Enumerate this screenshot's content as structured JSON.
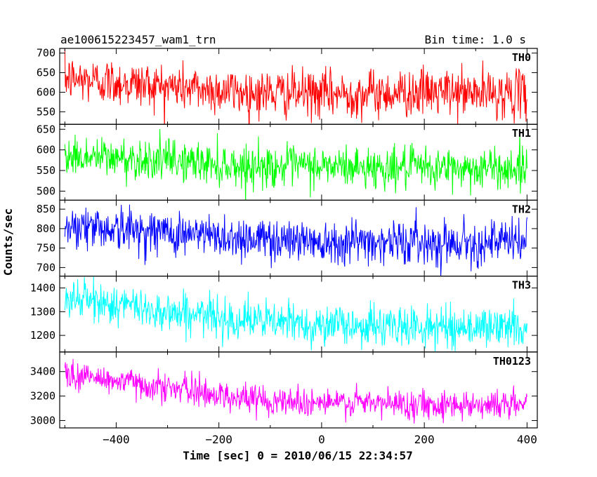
{
  "header": {
    "title": "ae100615223457_wam1_trn",
    "bin_time": "Bin time: 1.0 s"
  },
  "axes": {
    "xlabel": "Time [sec] 0 = 2010/06/15 22:34:57",
    "ylabel": "Counts/sec"
  },
  "chart_data": {
    "type": "line",
    "title": "ae100615223457_wam1_trn",
    "xlabel": "Time [sec] 0 = 2010/06/15 22:34:57",
    "ylabel": "Counts/sec",
    "xlim": [
      -510,
      420
    ],
    "x_range": [
      -500,
      400
    ],
    "x_ticks": [
      -400,
      -200,
      0,
      200,
      400
    ],
    "bin_time_s": 1.0,
    "grid": false,
    "panels": [
      {
        "name": "TH0",
        "color": "#ff0000",
        "ylim": [
          518,
          712
        ],
        "y_ticks": [
          550,
          600,
          650,
          700
        ],
        "trend": [
          [
            -500,
            635
          ],
          [
            -300,
            615
          ],
          [
            -150,
            600
          ],
          [
            0,
            595
          ],
          [
            200,
            600
          ],
          [
            400,
            595
          ]
        ],
        "noise_sd": 30
      },
      {
        "name": "TH1",
        "color": "#00ff00",
        "ylim": [
          478,
          662
        ],
        "y_ticks": [
          500,
          550,
          600,
          650
        ],
        "trend": [
          [
            -500,
            585
          ],
          [
            -300,
            575
          ],
          [
            -150,
            560
          ],
          [
            0,
            560
          ],
          [
            200,
            555
          ],
          [
            400,
            555
          ]
        ],
        "noise_sd": 25
      },
      {
        "name": "TH2",
        "color": "#0000ff",
        "ylim": [
          678,
          873
        ],
        "y_ticks": [
          700,
          750,
          800,
          850
        ],
        "trend": [
          [
            -500,
            810
          ],
          [
            -300,
            790
          ],
          [
            -150,
            775
          ],
          [
            0,
            770
          ],
          [
            200,
            765
          ],
          [
            400,
            765
          ]
        ],
        "noise_sd": 28
      },
      {
        "name": "TH3",
        "color": "#00ffff",
        "ylim": [
          1130,
          1450
        ],
        "y_ticks": [
          1200,
          1300,
          1400
        ],
        "trend": [
          [
            -500,
            1360
          ],
          [
            -300,
            1300
          ],
          [
            -150,
            1265
          ],
          [
            0,
            1245
          ],
          [
            200,
            1235
          ],
          [
            400,
            1235
          ]
        ],
        "noise_sd": 42
      },
      {
        "name": "TH0123",
        "color": "#ff00ff",
        "ylim": [
          2940,
          3560
        ],
        "y_ticks": [
          3000,
          3200,
          3400
        ],
        "trend": [
          [
            -500,
            3380
          ],
          [
            -300,
            3270
          ],
          [
            -150,
            3180
          ],
          [
            0,
            3145
          ],
          [
            200,
            3135
          ],
          [
            400,
            3130
          ]
        ],
        "noise_sd": 60
      }
    ]
  }
}
